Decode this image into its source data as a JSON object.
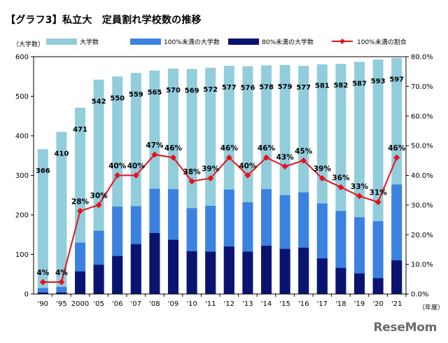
{
  "title": "【グラフ3】私立大　定員割れ学校数の推移",
  "watermark": "ReseMom",
  "colors": {
    "total": "#92cddc",
    "under100": "#3b82e0",
    "under80": "#0a1470",
    "ratio_line": "#e8121a"
  },
  "chart_data": {
    "type": "bar",
    "title": "【グラフ3】私立大　定員割れ学校数の推移",
    "categories": [
      "'90",
      "'95",
      "2000",
      "'05",
      "'06",
      "'07",
      "'08",
      "'09",
      "'10",
      "'11",
      "'12",
      "'13",
      "'14",
      "'15",
      "'16",
      "'17",
      "'18",
      "'19",
      "'20",
      "'21"
    ],
    "series": [
      {
        "name": "大学数",
        "type": "bar",
        "color": "#92cddc",
        "values": [
          366,
          410,
          471,
          542,
          550,
          559,
          565,
          570,
          569,
          572,
          577,
          576,
          578,
          579,
          577,
          581,
          582,
          587,
          593,
          597
        ]
      },
      {
        "name": "100%未満の大学数",
        "type": "bar",
        "color": "#3b82e0",
        "values": [
          15,
          18,
          130,
          160,
          221,
          222,
          266,
          265,
          217,
          223,
          264,
          232,
          265,
          250,
          257,
          229,
          210,
          194,
          184,
          277
        ]
      },
      {
        "name": "80%未満の大学数",
        "type": "bar",
        "color": "#0a1470",
        "values": [
          4,
          4,
          57,
          74,
          96,
          126,
          154,
          137,
          108,
          107,
          120,
          107,
          122,
          114,
          117,
          90,
          66,
          52,
          40,
          85
        ]
      },
      {
        "name": "100%未満の割合",
        "type": "line",
        "axis": "right",
        "color": "#e8121a",
        "values": [
          4,
          4,
          28,
          30,
          40,
          40,
          47,
          46,
          38,
          39,
          46,
          40,
          46,
          43,
          45,
          39,
          36,
          33,
          31,
          46
        ],
        "labels": [
          "4%",
          "4%",
          "28%",
          "30%",
          "40%",
          "40%",
          "47%",
          "46%",
          "38%",
          "39%",
          "46%",
          "40%",
          "46%",
          "43%",
          "45%",
          "39%",
          "36%",
          "33%",
          "31%",
          "46%"
        ]
      }
    ],
    "left_axis": {
      "label": "（大学数）",
      "ylim": [
        0,
        600
      ],
      "ticks": [
        "0",
        "100",
        "200",
        "300",
        "400",
        "500",
        "600"
      ]
    },
    "right_axis": {
      "ylim": [
        0,
        80
      ],
      "ticks": [
        "0.0%",
        "10.0%",
        "20.0%",
        "30.0%",
        "40.0%",
        "50.0%",
        "60.0%",
        "70.0%",
        "80.0%"
      ]
    },
    "x_unit": "（年度）",
    "grid": false,
    "legend_position": "top"
  }
}
